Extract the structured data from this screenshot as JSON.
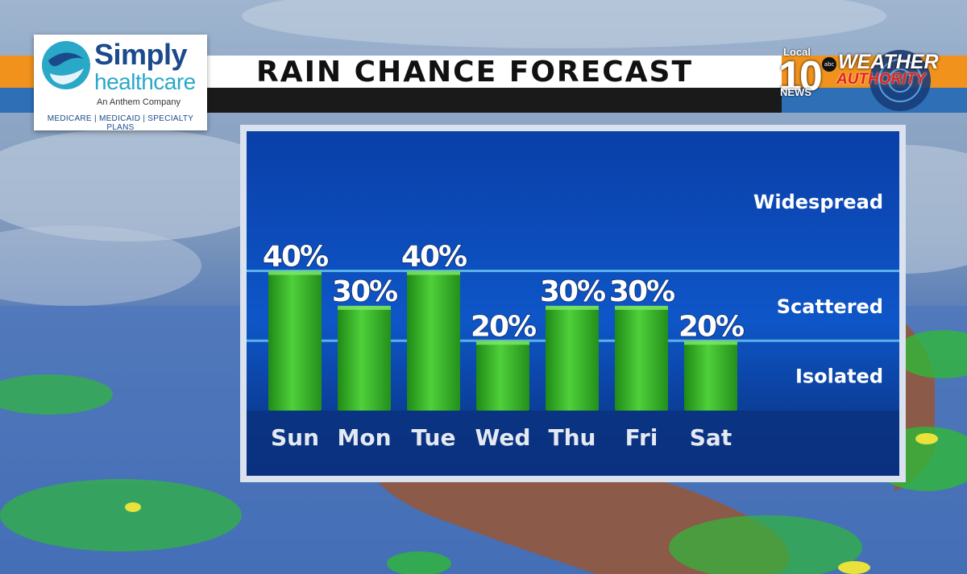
{
  "title": "RAIN CHANCE FORECAST",
  "sponsor": {
    "name_line1": "Simply",
    "name_line2": "healthcare",
    "tagline": "An Anthem Company",
    "plans": "MEDICARE | MEDICAID | SPECIALTY PLANS"
  },
  "station": {
    "local": "Local",
    "number": "10",
    "network": "abc",
    "news": "NEWS",
    "brand_top": "WEATHER",
    "brand_bottom": "AUTHORITY"
  },
  "colors": {
    "stripe_orange": "#f0921c",
    "stripe_blue": "#2e6fb6",
    "bar_green": "#3fbf2a",
    "panel_blue": "#0d4fc0"
  },
  "chart_data": {
    "type": "bar",
    "categories": [
      "Sun",
      "Mon",
      "Tue",
      "Wed",
      "Thu",
      "Fri",
      "Sat"
    ],
    "values": [
      40,
      30,
      40,
      20,
      30,
      30,
      20
    ],
    "value_labels": [
      "40%",
      "30%",
      "40%",
      "20%",
      "30%",
      "30%",
      "20%"
    ],
    "value_suffix": "%",
    "ylim": [
      0,
      80
    ],
    "bands": [
      "Isolated",
      "Scattered",
      "Widespread"
    ],
    "band_lines": [
      20,
      40
    ],
    "title": "RAIN CHANCE FORECAST",
    "xlabel": "",
    "ylabel": "",
    "grid": false,
    "legend": false
  }
}
